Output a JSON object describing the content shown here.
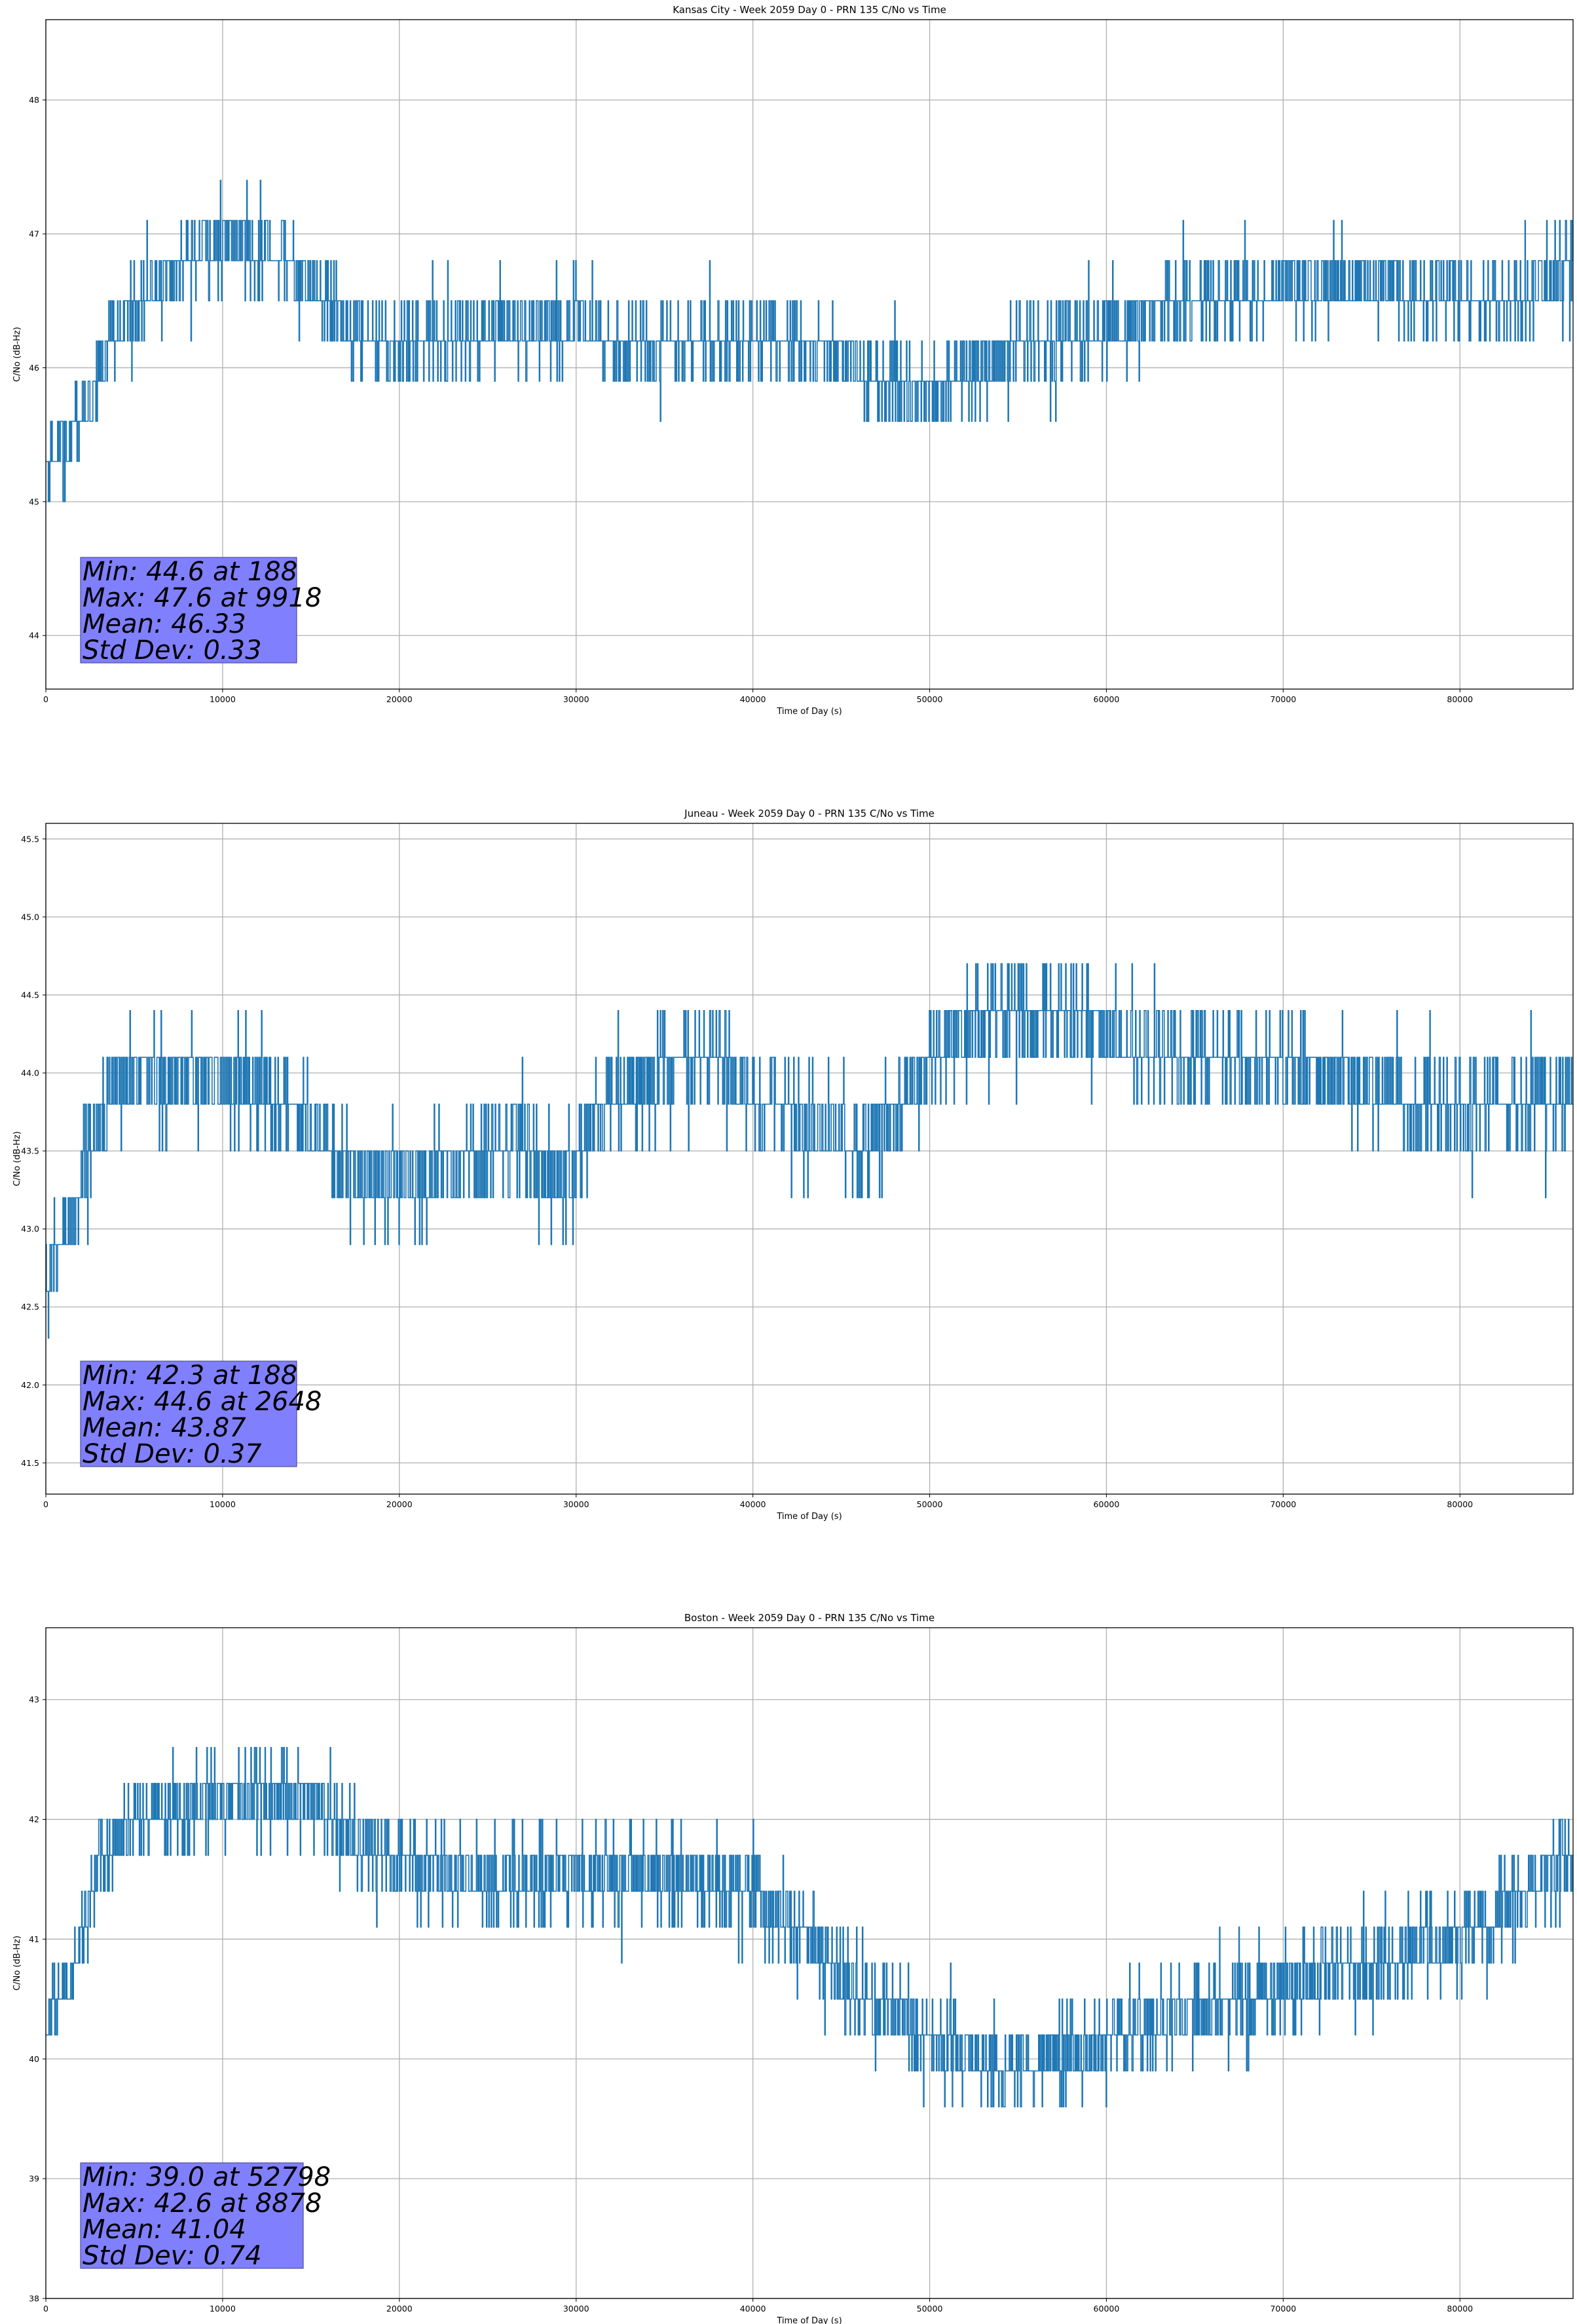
{
  "colors": {
    "series": "#1f77b4",
    "stats_box_fill": "#8080ff",
    "grid": "#b0b0b0",
    "axes": "#000000"
  },
  "chart_data": [
    {
      "type": "line",
      "title": "Kansas City - Week 2059 Day 0 - PRN 135 C/No vs Time",
      "xlabel": "Time of Day (s)",
      "ylabel": "C/No (dB-Hz)",
      "xlim": [
        0,
        86400
      ],
      "ylim": [
        43.6,
        48.6
      ],
      "xticks": [
        0,
        10000,
        20000,
        30000,
        40000,
        50000,
        60000,
        70000,
        80000
      ],
      "yticks": [
        44,
        45,
        46,
        47,
        48
      ],
      "grid": true,
      "quantization": 0.3,
      "trend": [
        [
          0,
          45.3
        ],
        [
          1500,
          45.5
        ],
        [
          2500,
          45.8
        ],
        [
          3500,
          46.2
        ],
        [
          5000,
          46.45
        ],
        [
          7000,
          46.7
        ],
        [
          9000,
          46.9
        ],
        [
          11000,
          46.95
        ],
        [
          13000,
          46.85
        ],
        [
          15000,
          46.6
        ],
        [
          17000,
          46.3
        ],
        [
          20000,
          46.2
        ],
        [
          25000,
          46.25
        ],
        [
          30000,
          46.3
        ],
        [
          32000,
          46.2
        ],
        [
          38000,
          46.2
        ],
        [
          42000,
          46.2
        ],
        [
          45000,
          46.1
        ],
        [
          47000,
          45.9
        ],
        [
          50000,
          45.8
        ],
        [
          53000,
          46.0
        ],
        [
          55000,
          46.15
        ],
        [
          60000,
          46.3
        ],
        [
          65000,
          46.5
        ],
        [
          70000,
          46.6
        ],
        [
          75000,
          46.65
        ],
        [
          80000,
          46.5
        ],
        [
          83000,
          46.5
        ],
        [
          86400,
          46.75
        ]
      ],
      "spread": 0.16,
      "stats": {
        "min": "Min: 44.6 at 188",
        "max": "Max: 47.6 at 9918",
        "mean": "Mean: 46.33",
        "std": "Std Dev: 0.33"
      }
    },
    {
      "type": "line",
      "title": "Juneau - Week 2059 Day 0 - PRN 135 C/No vs Time",
      "xlabel": "Time of Day (s)",
      "ylabel": "C/No (dB-Hz)",
      "xlim": [
        0,
        86400
      ],
      "ylim": [
        41.3,
        45.6
      ],
      "xticks": [
        0,
        10000,
        20000,
        30000,
        40000,
        50000,
        60000,
        70000,
        80000
      ],
      "yticks": [
        41.5,
        42.0,
        42.5,
        43.0,
        43.5,
        44.0,
        44.5,
        45.0,
        45.5
      ],
      "grid": true,
      "quantization": 0.3,
      "trend": [
        [
          0,
          42.6
        ],
        [
          1500,
          43.1
        ],
        [
          2500,
          43.6
        ],
        [
          4000,
          43.95
        ],
        [
          8000,
          44.0
        ],
        [
          11000,
          43.9
        ],
        [
          14000,
          43.8
        ],
        [
          16000,
          43.5
        ],
        [
          18000,
          43.3
        ],
        [
          21000,
          43.35
        ],
        [
          24000,
          43.45
        ],
        [
          27000,
          43.6
        ],
        [
          28500,
          43.3
        ],
        [
          30000,
          43.4
        ],
        [
          32000,
          43.8
        ],
        [
          35000,
          44.0
        ],
        [
          38000,
          44.1
        ],
        [
          40000,
          43.8
        ],
        [
          43000,
          43.7
        ],
        [
          46000,
          43.5
        ],
        [
          48000,
          43.7
        ],
        [
          50000,
          44.1
        ],
        [
          53000,
          44.35
        ],
        [
          57000,
          44.4
        ],
        [
          61000,
          44.2
        ],
        [
          65000,
          44.1
        ],
        [
          70000,
          44.05
        ],
        [
          75000,
          43.9
        ],
        [
          80000,
          43.75
        ],
        [
          86400,
          43.85
        ]
      ],
      "spread": 0.17,
      "stats": {
        "min": "Min: 42.3 at 188",
        "max": "Max: 44.6 at 2648",
        "mean": "Mean: 43.87",
        "std": "Std Dev: 0.37"
      }
    },
    {
      "type": "line",
      "title": "Boston - Week 2059 Day 0 - PRN 135 C/No vs Time",
      "xlabel": "Time of Day (s)",
      "ylabel": "C/No (dB-Hz)",
      "xlim": [
        0,
        86400
      ],
      "ylim": [
        38,
        43.6
      ],
      "xticks": [
        0,
        10000,
        20000,
        30000,
        40000,
        50000,
        60000,
        70000,
        80000
      ],
      "yticks": [
        38,
        39,
        40,
        41,
        42,
        43
      ],
      "grid": true,
      "quantization": 0.3,
      "trend": [
        [
          0,
          40.3
        ],
        [
          1500,
          40.8
        ],
        [
          2500,
          41.3
        ],
        [
          3500,
          41.8
        ],
        [
          5000,
          41.95
        ],
        [
          8000,
          42.05
        ],
        [
          10000,
          42.2
        ],
        [
          13000,
          42.2
        ],
        [
          16000,
          42.1
        ],
        [
          17500,
          41.8
        ],
        [
          20000,
          41.7
        ],
        [
          23000,
          41.5
        ],
        [
          30000,
          41.5
        ],
        [
          35000,
          41.5
        ],
        [
          40000,
          41.4
        ],
        [
          43000,
          41.0
        ],
        [
          45000,
          40.6
        ],
        [
          48000,
          40.4
        ],
        [
          52000,
          40.0
        ],
        [
          55000,
          39.9
        ],
        [
          58000,
          40.1
        ],
        [
          62000,
          40.3
        ],
        [
          66000,
          40.4
        ],
        [
          70000,
          40.6
        ],
        [
          75000,
          40.8
        ],
        [
          80000,
          41.0
        ],
        [
          83000,
          41.3
        ],
        [
          86400,
          41.75
        ]
      ],
      "spread": 0.2,
      "stats": {
        "min": "Min: 39.0 at 52798",
        "max": "Max: 42.6 at 8878",
        "mean": "Mean: 41.04",
        "std": "Std Dev: 0.74"
      }
    }
  ]
}
